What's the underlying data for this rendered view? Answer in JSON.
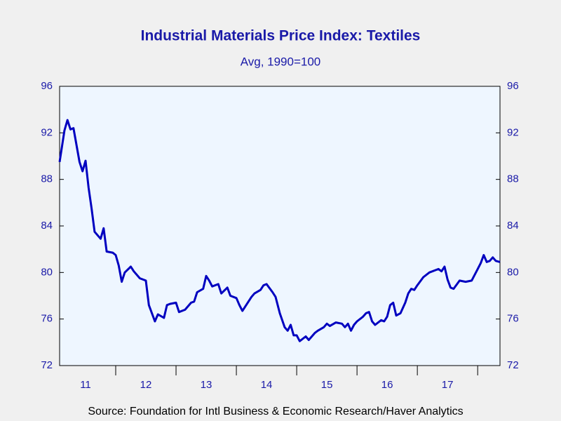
{
  "chart_data": {
    "type": "line",
    "title": "Industrial Materials Price Index: Textiles",
    "subtitle": "Avg, 1990=100",
    "source": "Source:  Foundation for Intl Business & Economic Research/Haver Analytics",
    "x": [
      11.07,
      11.15,
      11.2,
      11.25,
      11.3,
      11.4,
      11.45,
      11.5,
      11.55,
      11.6,
      11.65,
      11.7,
      11.75,
      11.8,
      11.85,
      11.95,
      12.0,
      12.05,
      12.1,
      12.15,
      12.25,
      12.3,
      12.4,
      12.5,
      12.55,
      12.6,
      12.65,
      12.7,
      12.8,
      12.85,
      12.9,
      13.0,
      13.05,
      13.15,
      13.25,
      13.3,
      13.35,
      13.45,
      13.5,
      13.55,
      13.6,
      13.7,
      13.75,
      13.85,
      13.9,
      14.0,
      14.05,
      14.1,
      14.2,
      14.25,
      14.3,
      14.4,
      14.45,
      14.5,
      14.6,
      14.65,
      14.72,
      14.8,
      14.85,
      14.9,
      14.95,
      15.0,
      15.05,
      15.15,
      15.2,
      15.3,
      15.35,
      15.45,
      15.5,
      15.55,
      15.65,
      15.75,
      15.8,
      15.85,
      15.9,
      15.95,
      16.0,
      16.1,
      16.15,
      16.2,
      16.25,
      16.3,
      16.4,
      16.45,
      16.5,
      16.55,
      16.6,
      16.65,
      16.72,
      16.8,
      16.85,
      16.9,
      16.95,
      17.0,
      17.1,
      17.2,
      17.3,
      17.35,
      17.4,
      17.45,
      17.5,
      17.55,
      17.6,
      17.7,
      17.8,
      17.9,
      17.95,
      18.0,
      18.05,
      18.1,
      18.15,
      18.2,
      18.25,
      18.3,
      18.37
    ],
    "series": [
      {
        "color": "#0000c0",
        "values": [
          89.5,
          92.2,
          93.1,
          92.3,
          92.4,
          89.5,
          88.7,
          89.6,
          87.3,
          85.5,
          83.5,
          83.2,
          82.9,
          83.8,
          81.8,
          81.7,
          81.5,
          80.6,
          79.2,
          80.0,
          80.5,
          80.1,
          79.5,
          79.3,
          77.2,
          76.5,
          75.8,
          76.4,
          76.1,
          77.2,
          77.3,
          77.4,
          76.6,
          76.8,
          77.4,
          77.5,
          78.3,
          78.6,
          79.7,
          79.3,
          78.8,
          79.0,
          78.2,
          78.7,
          78.0,
          77.8,
          77.2,
          76.7,
          77.5,
          77.9,
          78.2,
          78.5,
          78.9,
          79.0,
          78.3,
          77.9,
          76.5,
          75.3,
          75.0,
          75.5,
          74.6,
          74.6,
          74.1,
          74.5,
          74.2,
          74.8,
          75.0,
          75.3,
          75.6,
          75.4,
          75.7,
          75.6,
          75.3,
          75.6,
          75.0,
          75.5,
          75.8,
          76.2,
          76.5,
          76.6,
          75.8,
          75.5,
          75.9,
          75.8,
          76.2,
          77.2,
          77.4,
          76.3,
          76.5,
          77.4,
          78.2,
          78.6,
          78.5,
          78.9,
          79.6,
          80.0,
          80.2,
          80.3,
          80.1,
          80.5,
          79.4,
          78.7,
          78.6,
          79.3,
          79.2,
          79.3,
          79.8,
          80.3,
          80.8,
          81.5,
          80.9,
          81.0,
          81.3,
          81.0,
          80.9
        ]
      }
    ],
    "xlim": [
      11.07,
      18.37
    ],
    "xticks": [
      {
        "value": 11.5,
        "label": "11"
      },
      {
        "value": 12.5,
        "label": "12"
      },
      {
        "value": 13.5,
        "label": "13"
      },
      {
        "value": 14.5,
        "label": "14"
      },
      {
        "value": 15.5,
        "label": "15"
      },
      {
        "value": 16.5,
        "label": "16"
      },
      {
        "value": 17.5,
        "label": "17"
      }
    ],
    "year_boundaries": [
      12,
      13,
      14,
      15,
      16,
      17,
      18
    ],
    "ylim": [
      72,
      96
    ],
    "yticks": [
      72,
      76,
      80,
      84,
      88,
      92,
      96
    ],
    "y2lim": [
      72,
      96
    ],
    "y2ticks": [
      72,
      76,
      80,
      84,
      88,
      92,
      96
    ]
  }
}
